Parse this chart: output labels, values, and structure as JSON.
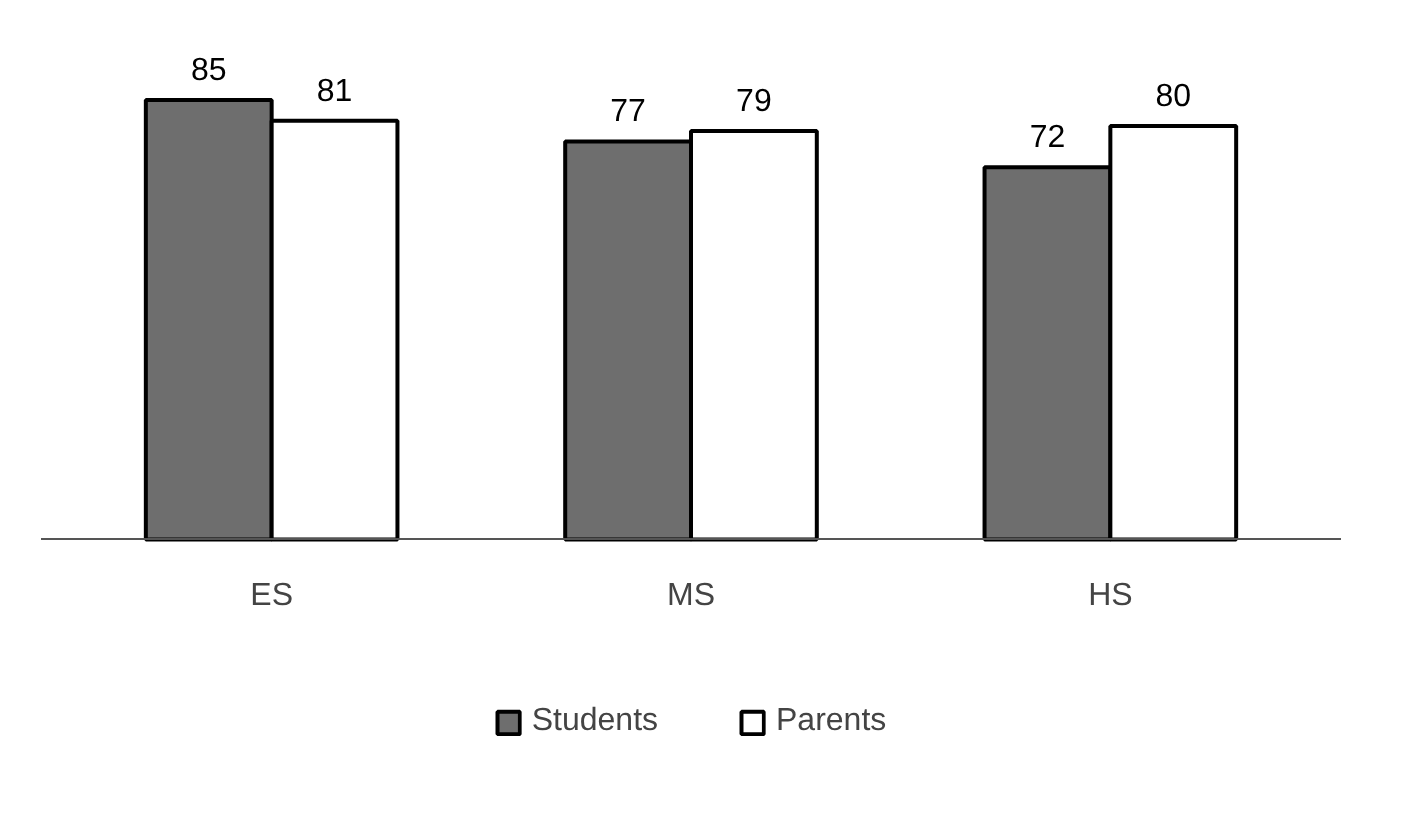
{
  "chart_data": {
    "type": "bar",
    "categories": [
      "ES",
      "MS",
      "HS"
    ],
    "series": [
      {
        "name": "Students",
        "color": "#6e6e6e",
        "values": [
          85,
          77,
          72
        ]
      },
      {
        "name": "Parents",
        "color": "#ffffff",
        "values": [
          81,
          79,
          80
        ]
      }
    ],
    "data_labels": true,
    "grid": false,
    "legend": "bottom"
  }
}
